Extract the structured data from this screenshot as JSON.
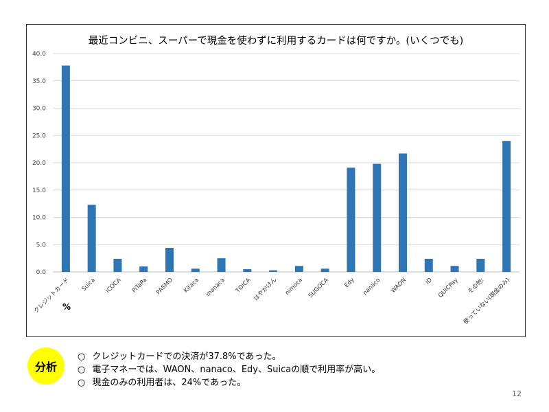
{
  "slide": {
    "badge": "分析",
    "analysis_points": [
      "クレジットカードでの決済が37.8%であった。",
      "電子マネーでは、WAON、nanaco、Edy、Suicaの順で利用率が高い。",
      "現金のみの利用者は、24%であった。"
    ],
    "page_number": "12"
  },
  "chart_data": {
    "type": "bar",
    "title": "最近コンビニ、スーパーで現金を使わずに利用するカードは何ですか。(いくつでも)",
    "unit_label": "%",
    "categories": [
      "クレジットカード",
      "Suica",
      "ICOCA",
      "PiTaPa",
      "PASMO",
      "Kitaca",
      "manaca",
      "TOICA",
      "はやかけん",
      "nimoca",
      "SUGOCA",
      "Edy",
      "nanaco",
      "WAON",
      "iD",
      "QUICPay",
      "その他:",
      "使っていない(現金のみ)"
    ],
    "values": [
      37.8,
      12.3,
      2.4,
      1.0,
      4.4,
      0.6,
      2.5,
      0.5,
      0.3,
      1.1,
      0.6,
      19.1,
      19.8,
      21.7,
      2.4,
      1.1,
      2.4,
      24.0
    ],
    "ylim": [
      0,
      40
    ],
    "yticks": [
      "0.0",
      "5.0",
      "10.0",
      "15.0",
      "20.0",
      "25.0",
      "30.0",
      "35.0",
      "40.0"
    ],
    "bar_color": "#2e75b6",
    "grid": true
  }
}
